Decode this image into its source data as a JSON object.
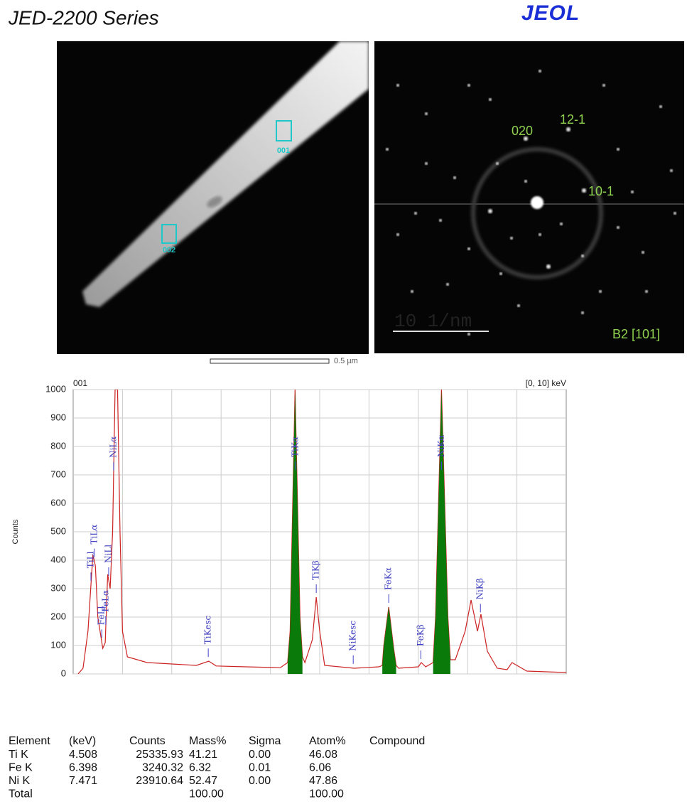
{
  "header": {
    "title": "JED-2200 Series",
    "logo": "JEOL"
  },
  "images": {
    "tem": {
      "areas": [
        "001",
        "002"
      ],
      "scale_bar": "0.5 µm"
    },
    "diffraction": {
      "spots": [
        "020",
        "12-1",
        "10-1"
      ],
      "zone": "B2 [101]",
      "scale_bar": "10 1/nm"
    }
  },
  "chart_data": {
    "type": "line",
    "title": "001",
    "range_label": "[0, 10] keV",
    "ylabel": "Counts",
    "x": [
      0.1,
      0.2,
      0.3,
      0.4,
      0.45,
      0.5,
      0.6,
      0.65,
      0.7,
      0.75,
      0.8,
      0.85,
      0.9,
      0.95,
      1.0,
      1.1,
      1.5,
      2.0,
      2.5,
      2.75,
      2.9,
      3.5,
      4.2,
      4.35,
      4.4,
      4.5,
      4.6,
      4.65,
      4.7,
      4.85,
      4.93,
      5.0,
      5.1,
      5.7,
      6.2,
      6.27,
      6.3,
      6.4,
      6.5,
      6.55,
      6.6,
      7.0,
      7.06,
      7.15,
      7.3,
      7.35,
      7.47,
      7.6,
      7.65,
      7.75,
      7.95,
      8.07,
      8.2,
      8.27,
      8.4,
      8.6,
      8.8,
      8.9,
      9.2,
      10
    ],
    "series": [
      {
        "color": "#cc2222",
        "values": [
          0,
          20,
          150,
          420,
          380,
          200,
          90,
          110,
          350,
          300,
          500,
          1000,
          1000,
          500,
          150,
          60,
          40,
          35,
          30,
          45,
          28,
          25,
          22,
          40,
          150,
          1000,
          200,
          60,
          40,
          120,
          270,
          150,
          30,
          20,
          25,
          30,
          100,
          235,
          90,
          30,
          20,
          25,
          40,
          25,
          40,
          200,
          1000,
          200,
          50,
          50,
          150,
          260,
          150,
          210,
          80,
          20,
          15,
          40,
          10,
          5
        ]
      },
      {
        "color": "#0a7a0a",
        "fill": true,
        "values": [
          null,
          null,
          null,
          null,
          null,
          null,
          null,
          null,
          null,
          null,
          null,
          null,
          null,
          null,
          null,
          null,
          null,
          null,
          null,
          null,
          null,
          null,
          null,
          40,
          150,
          1000,
          200,
          60,
          null,
          null,
          null,
          null,
          null,
          null,
          null,
          30,
          100,
          235,
          90,
          30,
          null,
          null,
          null,
          null,
          40,
          200,
          1000,
          200,
          50,
          null,
          null,
          null,
          null,
          null,
          null,
          null,
          null,
          null,
          null,
          null
        ]
      }
    ],
    "annotations": [
      {
        "text": "TiLl",
        "x": 0.36
      },
      {
        "text": "TiLα",
        "x": 0.43
      },
      {
        "text": "FeLl",
        "x": 0.58
      },
      {
        "text": "FeLα",
        "x": 0.66
      },
      {
        "text": "NiLl",
        "x": 0.72
      },
      {
        "text": "NiLα",
        "x": 0.82
      },
      {
        "text": "TiKesc",
        "x": 2.74
      },
      {
        "text": "TiKα",
        "x": 4.51
      },
      {
        "text": "TiKβ",
        "x": 4.93
      },
      {
        "text": "NiKesc",
        "x": 5.68
      },
      {
        "text": "FeKα",
        "x": 6.4
      },
      {
        "text": "FeKβ",
        "x": 7.05
      },
      {
        "text": "NiKα",
        "x": 7.47
      },
      {
        "text": "NiKβ",
        "x": 8.26
      }
    ],
    "xlim": [
      0,
      10
    ],
    "ylim": [
      0,
      1000
    ],
    "yticks": [
      0,
      100,
      200,
      300,
      400,
      500,
      600,
      700,
      800,
      900,
      1000
    ],
    "grid": true
  },
  "table": {
    "header": [
      "Element",
      "(keV)",
      "Counts",
      "Mass%",
      "Sigma",
      "Atom%",
      "Compound"
    ],
    "rows": [
      [
        "Ti K",
        "4.508",
        "25335.93",
        "41.21",
        "0.00",
        "46.08",
        null
      ],
      [
        "Fe K",
        "6.398",
        "3240.32",
        "6.32",
        "0.01",
        "6.06",
        null
      ],
      [
        "Ni K",
        "7.471",
        "23910.64",
        "52.47",
        "0.00",
        "47.86",
        null
      ],
      [
        "Total",
        null,
        null,
        "100.00",
        null,
        "100.00",
        null
      ]
    ]
  }
}
